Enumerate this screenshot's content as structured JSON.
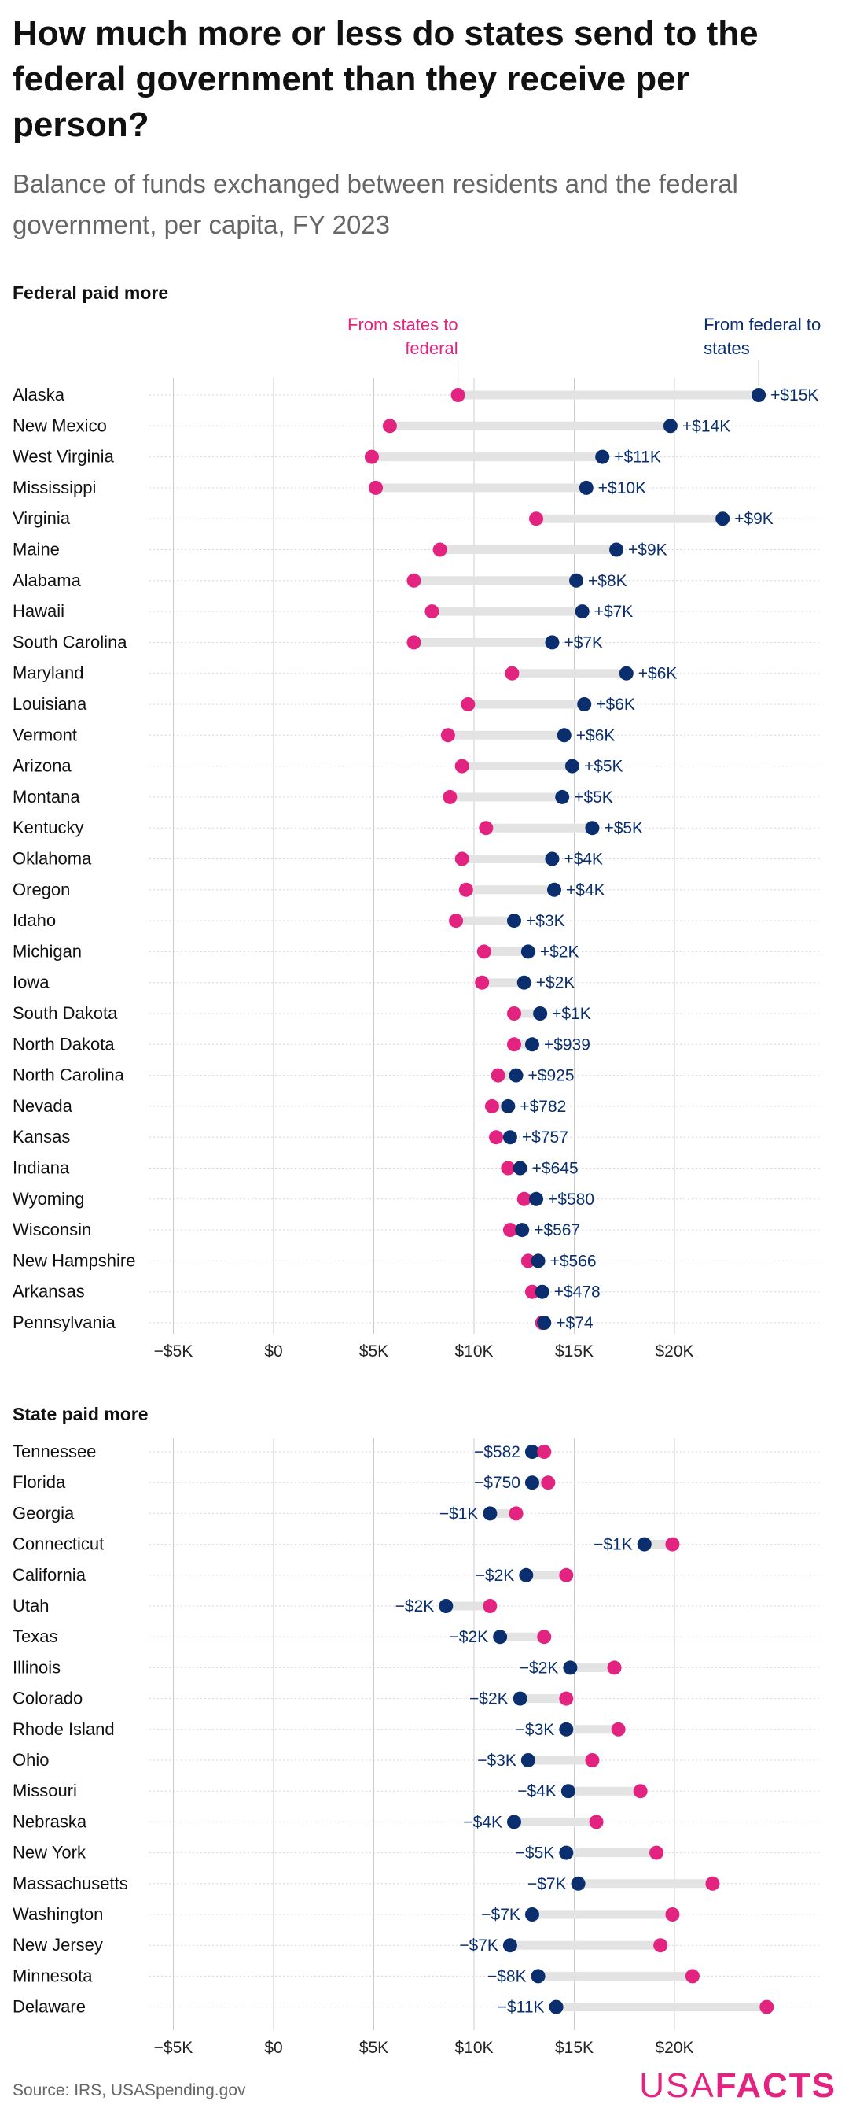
{
  "title": "How much more or less do states send to the federal government than they receive per person?",
  "subtitle": "Balance of funds exchanged between residents and the federal government, per capita, FY 2023",
  "source": "Source: IRS, USASpending.gov",
  "logo": {
    "part1": "USA",
    "part2": "FACTS"
  },
  "colors": {
    "state": "#e2237f",
    "federal": "#0b2f6e",
    "connector": "#e3e3e3",
    "grid": "#cccccc"
  },
  "chart_data": [
    {
      "type": "dumbbell",
      "group_title": "Federal paid more",
      "legend": {
        "state": "From states to federal",
        "federal": "From federal to states"
      },
      "x_ticks": [
        "−$5K",
        "$0",
        "$5K",
        "$10K",
        "$15K",
        "$20K"
      ],
      "x_tick_values": [
        -5000,
        0,
        5000,
        10000,
        15000,
        20000
      ],
      "xlim": [
        -5500,
        25500
      ],
      "rows": [
        {
          "state": "Alaska",
          "to_federal": 9200,
          "from_federal": 24200,
          "label": "+$15K"
        },
        {
          "state": "New Mexico",
          "to_federal": 5800,
          "from_federal": 19800,
          "label": "+$14K"
        },
        {
          "state": "West Virginia",
          "to_federal": 4900,
          "from_federal": 16400,
          "label": "+$11K"
        },
        {
          "state": "Mississippi",
          "to_federal": 5100,
          "from_federal": 15600,
          "label": "+$10K"
        },
        {
          "state": "Virginia",
          "to_federal": 13100,
          "from_federal": 22400,
          "label": "+$9K"
        },
        {
          "state": "Maine",
          "to_federal": 8300,
          "from_federal": 17100,
          "label": "+$9K"
        },
        {
          "state": "Alabama",
          "to_federal": 7000,
          "from_federal": 15100,
          "label": "+$8K"
        },
        {
          "state": "Hawaii",
          "to_federal": 7900,
          "from_federal": 15400,
          "label": "+$7K"
        },
        {
          "state": "South Carolina",
          "to_federal": 7000,
          "from_federal": 13900,
          "label": "+$7K"
        },
        {
          "state": "Maryland",
          "to_federal": 11900,
          "from_federal": 17600,
          "label": "+$6K"
        },
        {
          "state": "Louisiana",
          "to_federal": 9700,
          "from_federal": 15500,
          "label": "+$6K"
        },
        {
          "state": "Vermont",
          "to_federal": 8700,
          "from_federal": 14500,
          "label": "+$6K"
        },
        {
          "state": "Arizona",
          "to_federal": 9400,
          "from_federal": 14900,
          "label": "+$5K"
        },
        {
          "state": "Montana",
          "to_federal": 8800,
          "from_federal": 14400,
          "label": "+$5K"
        },
        {
          "state": "Kentucky",
          "to_federal": 10600,
          "from_federal": 15900,
          "label": "+$5K"
        },
        {
          "state": "Oklahoma",
          "to_federal": 9400,
          "from_federal": 13900,
          "label": "+$4K"
        },
        {
          "state": "Oregon",
          "to_federal": 9600,
          "from_federal": 14000,
          "label": "+$4K"
        },
        {
          "state": "Idaho",
          "to_federal": 9100,
          "from_federal": 12000,
          "label": "+$3K"
        },
        {
          "state": "Michigan",
          "to_federal": 10500,
          "from_federal": 12700,
          "label": "+$2K"
        },
        {
          "state": "Iowa",
          "to_federal": 10400,
          "from_federal": 12500,
          "label": "+$2K"
        },
        {
          "state": "South Dakota",
          "to_federal": 12000,
          "from_federal": 13300,
          "label": "+$1K"
        },
        {
          "state": "North Dakota",
          "to_federal": 12000,
          "from_federal": 12900,
          "label": "+$939"
        },
        {
          "state": "North Carolina",
          "to_federal": 11200,
          "from_federal": 12100,
          "label": "+$925"
        },
        {
          "state": "Nevada",
          "to_federal": 10900,
          "from_federal": 11700,
          "label": "+$782"
        },
        {
          "state": "Kansas",
          "to_federal": 11100,
          "from_federal": 11800,
          "label": "+$757"
        },
        {
          "state": "Indiana",
          "to_federal": 11700,
          "from_federal": 12300,
          "label": "+$645"
        },
        {
          "state": "Wyoming",
          "to_federal": 12500,
          "from_federal": 13100,
          "label": "+$580"
        },
        {
          "state": "Wisconsin",
          "to_federal": 11800,
          "from_federal": 12400,
          "label": "+$567"
        },
        {
          "state": "New Hampshire",
          "to_federal": 12700,
          "from_federal": 13200,
          "label": "+$566"
        },
        {
          "state": "Arkansas",
          "to_federal": 12900,
          "from_federal": 13400,
          "label": "+$478"
        },
        {
          "state": "Pennsylvania",
          "to_federal": 13400,
          "from_federal": 13500,
          "label": "+$74"
        }
      ]
    },
    {
      "type": "dumbbell",
      "group_title": "State paid more",
      "x_ticks": [
        "−$5K",
        "$0",
        "$5K",
        "$10K",
        "$15K",
        "$20K"
      ],
      "x_tick_values": [
        -5000,
        0,
        5000,
        10000,
        15000,
        20000
      ],
      "xlim": [
        -5500,
        25500
      ],
      "rows": [
        {
          "state": "Tennessee",
          "to_federal": 13500,
          "from_federal": 12900,
          "label": "−$582"
        },
        {
          "state": "Florida",
          "to_federal": 13700,
          "from_federal": 12900,
          "label": "−$750"
        },
        {
          "state": "Georgia",
          "to_federal": 12100,
          "from_federal": 10800,
          "label": "−$1K"
        },
        {
          "state": "Connecticut",
          "to_federal": 19900,
          "from_federal": 18500,
          "label": "−$1K"
        },
        {
          "state": "California",
          "to_federal": 14600,
          "from_federal": 12600,
          "label": "−$2K"
        },
        {
          "state": "Utah",
          "to_federal": 10800,
          "from_federal": 8600,
          "label": "−$2K"
        },
        {
          "state": "Texas",
          "to_federal": 13500,
          "from_federal": 11300,
          "label": "−$2K"
        },
        {
          "state": "Illinois",
          "to_federal": 17000,
          "from_federal": 14800,
          "label": "−$2K"
        },
        {
          "state": "Colorado",
          "to_federal": 14600,
          "from_federal": 12300,
          "label": "−$2K"
        },
        {
          "state": "Rhode Island",
          "to_federal": 17200,
          "from_federal": 14600,
          "label": "−$3K"
        },
        {
          "state": "Ohio",
          "to_federal": 15900,
          "from_federal": 12700,
          "label": "−$3K"
        },
        {
          "state": "Missouri",
          "to_federal": 18300,
          "from_federal": 14700,
          "label": "−$4K"
        },
        {
          "state": "Nebraska",
          "to_federal": 16100,
          "from_federal": 12000,
          "label": "−$4K"
        },
        {
          "state": "New York",
          "to_federal": 19100,
          "from_federal": 14600,
          "label": "−$5K"
        },
        {
          "state": "Massachusetts",
          "to_federal": 21900,
          "from_federal": 15200,
          "label": "−$7K"
        },
        {
          "state": "Washington",
          "to_federal": 19900,
          "from_federal": 12900,
          "label": "−$7K"
        },
        {
          "state": "New Jersey",
          "to_federal": 19300,
          "from_federal": 11800,
          "label": "−$7K"
        },
        {
          "state": "Minnesota",
          "to_federal": 20900,
          "from_federal": 13200,
          "label": "−$8K"
        },
        {
          "state": "Delaware",
          "to_federal": 24600,
          "from_federal": 14100,
          "label": "−$11K"
        }
      ]
    }
  ]
}
